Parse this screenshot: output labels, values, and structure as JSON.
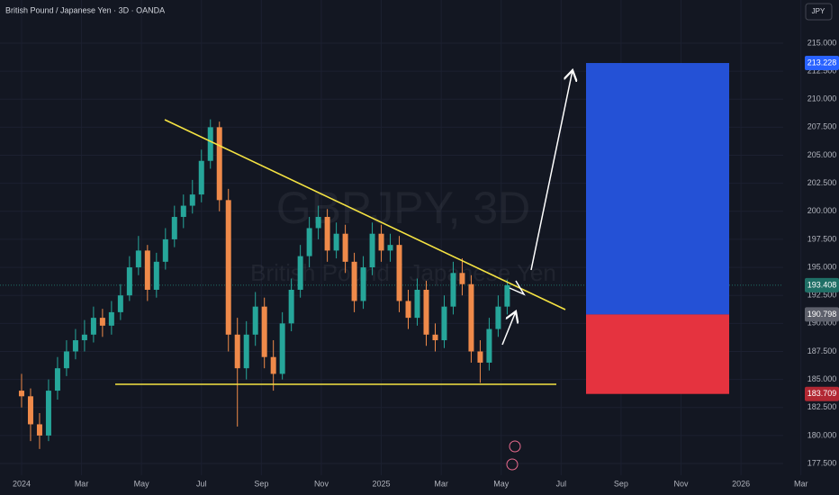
{
  "chart_data": {
    "type": "candlestick",
    "title": "British Pound / Japanese Yen · 3D · OANDA",
    "currency_button": "JPY",
    "watermark_symbol": "GBPJPY, 3D",
    "watermark_name": "British Pound / Japanese Yen",
    "up_color": "#26a69a",
    "down_color": "#ef8a4a",
    "x": [
      0,
      0.3,
      0.6,
      0.9,
      1.2,
      1.5,
      1.8,
      2.1,
      2.4,
      2.7,
      3,
      3.3,
      3.6,
      3.9,
      4.2,
      4.5,
      4.8,
      5.1,
      5.4,
      5.7,
      6,
      6.3,
      6.6,
      6.9,
      7.2,
      7.5,
      7.8,
      8.1,
      8.4,
      8.7,
      9,
      9.3,
      9.6,
      9.9,
      10.2,
      10.5,
      10.8,
      11.1,
      11.4,
      11.7,
      12,
      12.3,
      12.6,
      12.9,
      13.2,
      13.5,
      13.8,
      14.1,
      14.4,
      14.7,
      15,
      15.3,
      15.6,
      15.9,
      16.2
    ],
    "open": [
      184,
      183.5,
      181,
      180,
      184,
      186,
      187.5,
      188.5,
      189,
      190.5,
      189.8,
      191,
      192.5,
      195,
      196.5,
      193,
      195.5,
      197.5,
      199.5,
      200.5,
      201.5,
      204.5,
      207.5,
      201,
      189,
      186,
      189,
      191.5,
      187,
      185.5,
      190,
      193,
      196,
      198.5,
      199.5,
      196.5,
      198,
      195.5,
      192,
      195,
      198,
      196.5,
      197,
      192,
      190.5,
      193,
      189,
      188.5,
      191.5,
      194.5,
      193.5,
      187.5,
      186.5,
      189.5,
      191.5
    ],
    "high": [
      185.5,
      184.2,
      182,
      185,
      187,
      188.5,
      189.5,
      190.3,
      191.5,
      191.3,
      192,
      193.5,
      196,
      197.8,
      197,
      196.3,
      198.5,
      200.5,
      201.5,
      202.8,
      205.5,
      208.2,
      208,
      202,
      190.5,
      190.2,
      192.8,
      192.3,
      188.5,
      191,
      194,
      197,
      199.5,
      200.5,
      200.2,
      199,
      198.8,
      196.3,
      196,
      199,
      198.8,
      198,
      197.8,
      193,
      194,
      193.8,
      190,
      192.5,
      195.5,
      195.8,
      194.3,
      188.5,
      190.5,
      192.5,
      193.9
    ],
    "low": [
      182.5,
      179.5,
      178.8,
      179.5,
      183.2,
      185.3,
      186.8,
      187.5,
      188.3,
      188.8,
      189,
      190.3,
      192,
      194.3,
      192,
      192.3,
      194.8,
      196.8,
      198.5,
      199.8,
      200.8,
      203.8,
      200,
      187.5,
      180.8,
      185,
      188,
      186,
      184,
      185,
      189.3,
      192.3,
      195,
      197.5,
      195.5,
      195.8,
      194.5,
      191,
      191.3,
      194.3,
      195.5,
      195.5,
      191,
      189.5,
      189.8,
      188,
      187.5,
      187.8,
      190.8,
      192.5,
      186.5,
      184.7,
      185.8,
      188.8,
      190.8
    ],
    "close": [
      183.5,
      181,
      180,
      184,
      186,
      187.5,
      188.5,
      189,
      190.5,
      189.8,
      191,
      192.5,
      195,
      196.5,
      193,
      195.5,
      197.5,
      199.5,
      200.5,
      201.5,
      204.5,
      207.5,
      201,
      189,
      186,
      189,
      191.5,
      187,
      185.5,
      190,
      193,
      196,
      198.5,
      199.5,
      196.5,
      198,
      195.5,
      192,
      195,
      198,
      196.5,
      197,
      192,
      190.5,
      193,
      189,
      188.5,
      191.5,
      194.5,
      193.5,
      187.5,
      186.5,
      189.5,
      191.5,
      193.4
    ],
    "xlim": [
      -0.72,
      27.27
    ],
    "xticks": [
      {
        "value": 0,
        "label": "2024"
      },
      {
        "value": 2,
        "label": "Mar"
      },
      {
        "value": 4,
        "label": "May"
      },
      {
        "value": 6,
        "label": "Jul"
      },
      {
        "value": 8,
        "label": "Sep"
      },
      {
        "value": 10,
        "label": "Nov"
      },
      {
        "value": 12,
        "label": "2025"
      },
      {
        "value": 14,
        "label": "Mar"
      },
      {
        "value": 16,
        "label": "May"
      },
      {
        "value": 18,
        "label": "Jul"
      },
      {
        "value": 20,
        "label": "Sep"
      },
      {
        "value": 22,
        "label": "Nov"
      },
      {
        "value": 24,
        "label": "2026"
      },
      {
        "value": 26,
        "label": "Mar"
      }
    ],
    "ylim": [
      176.46,
      218.85
    ],
    "yticks": [
      {
        "value": 177.5,
        "label": "177.500"
      },
      {
        "value": 180,
        "label": "180.000"
      },
      {
        "value": 182.5,
        "label": "182.500"
      },
      {
        "value": 185,
        "label": "185.000"
      },
      {
        "value": 187.5,
        "label": "187.500"
      },
      {
        "value": 190,
        "label": "190.000"
      },
      {
        "value": 192.5,
        "label": "192.500"
      },
      {
        "value": 195,
        "label": "195.000"
      },
      {
        "value": 197.5,
        "label": "197.500"
      },
      {
        "value": 200,
        "label": "200.000"
      },
      {
        "value": 202.5,
        "label": "202.500"
      },
      {
        "value": 205,
        "label": "205.000"
      },
      {
        "value": 207.5,
        "label": "207.500"
      },
      {
        "value": 210,
        "label": "210.000"
      },
      {
        "value": 212.5,
        "label": "212.500"
      },
      {
        "value": 215,
        "label": "215.000"
      }
    ],
    "last_price": {
      "value": 193.408,
      "color": "#1f6f66"
    },
    "position": {
      "target": 213.228,
      "entry": 190.798,
      "stop": 183.709,
      "target_color": "#2962ff",
      "entry_color": "#5d606b",
      "stop_color": "#b22833",
      "profit_fill": "#2451d6",
      "loss_fill": "#e5333f"
    }
  }
}
